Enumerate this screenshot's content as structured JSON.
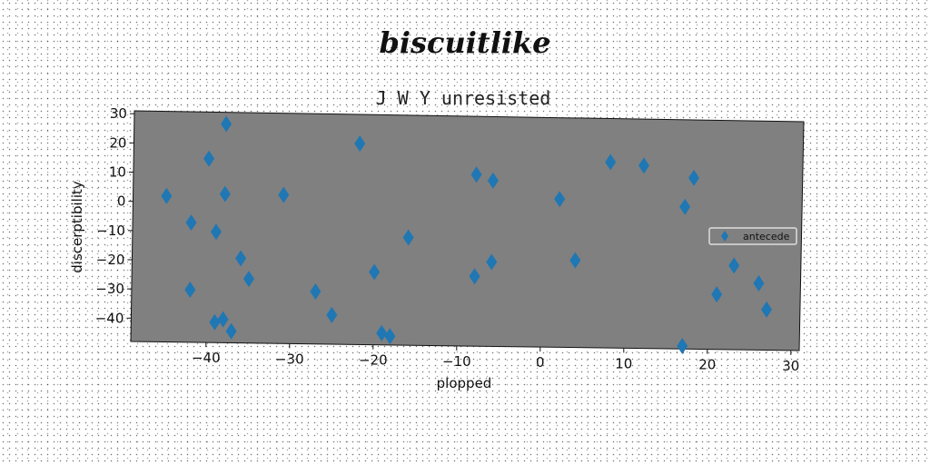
{
  "super_title": "biscuitlike",
  "chart_data": {
    "type": "scatter",
    "title": "J W Y unresisted",
    "xlabel": "plopped",
    "ylabel": "discerptibility",
    "xlim": [
      -49,
      31
    ],
    "ylim": [
      -48,
      31
    ],
    "xticks": [
      -40,
      -30,
      -20,
      -10,
      0,
      10,
      20,
      30
    ],
    "yticks": [
      30,
      20,
      10,
      0,
      -10,
      -20,
      -30,
      -40
    ],
    "grid": false,
    "legend_position": "right",
    "plot_background": "#808080",
    "series": [
      {
        "name": "antecede",
        "color": "#1f77b4",
        "marker": "diamond",
        "x": [
          -45,
          -42,
          -42,
          -40,
          -39,
          -39,
          -38,
          -38,
          -38,
          -37,
          -36,
          -35,
          -31,
          -27,
          -25,
          -22,
          -20,
          -19,
          -18,
          -16,
          -8,
          -8,
          -6,
          -6,
          2,
          4,
          8,
          12,
          17,
          17,
          18,
          21,
          23,
          26,
          27
        ],
        "y": [
          2,
          -7,
          -30,
          15,
          -10,
          -41,
          -40,
          27,
          3,
          -44,
          -19,
          -26,
          3,
          -30,
          -38,
          21,
          -23,
          -44,
          -45,
          -11,
          11,
          -24,
          -19,
          9,
          3,
          -18,
          16,
          15,
          -47,
          1,
          11,
          -29,
          -19,
          -25,
          -34
        ]
      }
    ]
  }
}
